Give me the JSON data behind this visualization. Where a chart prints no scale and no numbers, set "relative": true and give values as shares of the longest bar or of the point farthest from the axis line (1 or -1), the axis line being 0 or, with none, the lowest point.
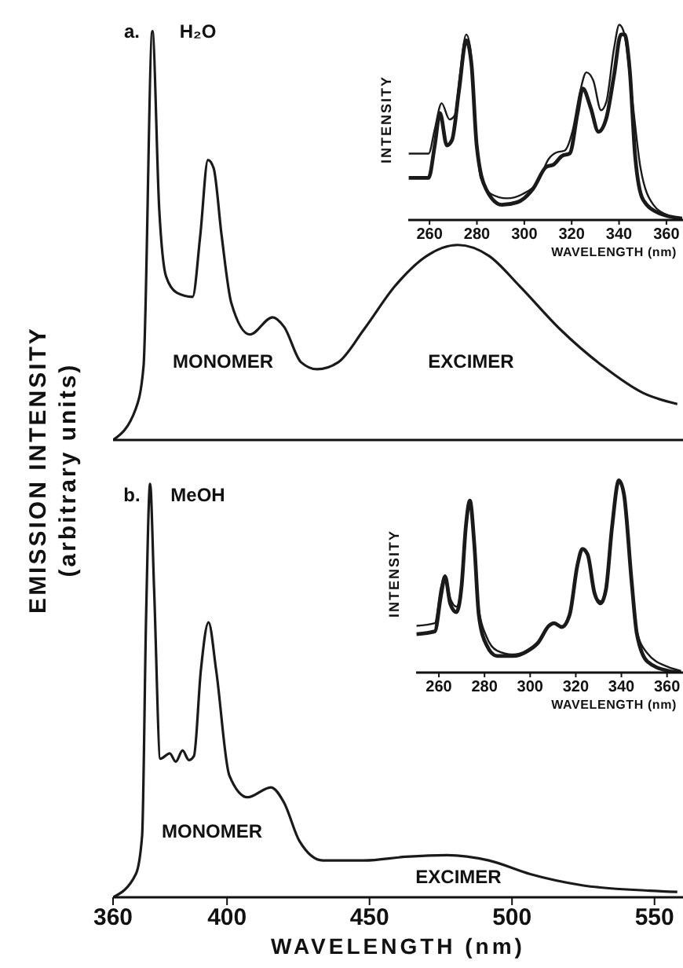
{
  "chart_data": [
    {
      "type": "line",
      "relative": true,
      "ylabel": "EMISSION INTENSITY (arbitrary units)",
      "xlim": [
        360,
        560
      ],
      "xticks": [
        360,
        400,
        450,
        500,
        550
      ],
      "tick_labels": false,
      "marker": "none",
      "x": [
        360,
        368,
        370.7,
        373.8,
        376.2,
        378.6,
        382.4,
        387.9,
        390.6,
        393.3,
        395.3,
        398.1,
        401.5,
        408,
        416,
        420,
        426,
        431.6,
        439,
        448,
        459,
        470,
        481,
        492,
        502.6,
        517,
        532,
        546,
        558
      ],
      "series": [
        {
          "color": "#1a1a1a",
          "values": [
            0,
            0.077,
            0.18,
            1.0,
            0.565,
            0.4,
            0.36,
            0.35,
            0.5,
            0.685,
            0.665,
            0.5,
            0.335,
            0.258,
            0.3,
            0.277,
            0.19,
            0.173,
            0.19,
            0.27,
            0.377,
            0.45,
            0.477,
            0.45,
            0.377,
            0.27,
            0.18,
            0.115,
            0.088
          ]
        }
      ],
      "annotations": [
        "a.",
        "H₂O",
        "MONOMER",
        "EXCIMER"
      ]
    },
    {
      "type": "line",
      "relative": true,
      "ylabel": "INTENSITY",
      "xlabel": "WAVELENGTH (nm)",
      "xlim": [
        251,
        367
      ],
      "xticks": [
        260,
        280,
        300,
        320,
        340,
        360
      ],
      "tick_labels": "x",
      "marker": "none",
      "series": [
        {
          "color": "#1a1a1a",
          "x": [
            251.2,
            259.6,
            262.2,
            265.1,
            268.4,
            270.6,
            272.8,
            275.5,
            277.2,
            279.4,
            281.6,
            286,
            292.7,
            299.3,
            306,
            310.3,
            313.6,
            317,
            320.3,
            323.6,
            326.2,
            329.1,
            332.4,
            334.6,
            337.9,
            340.1,
            342.3,
            345.7,
            349,
            354.5,
            361.1,
            366.6
          ],
          "values": [
            0.34,
            0.34,
            0.465,
            0.598,
            0.515,
            0.535,
            0.742,
            0.95,
            0.88,
            0.465,
            0.216,
            0.133,
            0.111,
            0.133,
            0.202,
            0.313,
            0.346,
            0.355,
            0.452,
            0.66,
            0.756,
            0.715,
            0.562,
            0.604,
            0.88,
            1,
            0.95,
            0.604,
            0.271,
            0.078,
            0.022,
            0.008
          ]
        },
        {
          "color": "#1a1a1a",
          "x": [
            251.2,
            259.6,
            262.2,
            264.4,
            267.3,
            269.5,
            272.4,
            275.5,
            277.7,
            279.9,
            283.8,
            290.5,
            297.1,
            303.7,
            309.2,
            312.5,
            315.8,
            319.2,
            322.5,
            324.7,
            328,
            331.3,
            334.6,
            337.9,
            340.8,
            342.3,
            344.5,
            346.8,
            350.1,
            356.7,
            366.6
          ],
          "values": [
            0.216,
            0.216,
            0.382,
            0.548,
            0.382,
            0.41,
            0.66,
            0.92,
            0.798,
            0.382,
            0.16,
            0.078,
            0.091,
            0.16,
            0.271,
            0.285,
            0.327,
            0.341,
            0.548,
            0.673,
            0.576,
            0.452,
            0.52,
            0.742,
            0.95,
            0.95,
            0.77,
            0.327,
            0.105,
            0.036,
            0.008
          ]
        }
      ]
    },
    {
      "type": "line",
      "relative": true,
      "xlabel": "WAVELENGTH (nm)",
      "xlim": [
        360,
        560
      ],
      "xticks": [
        360,
        400,
        450,
        500,
        550
      ],
      "tick_labels": "x",
      "marker": "none",
      "x": [
        360,
        368,
        370.2,
        371.6,
        373,
        374.4,
        376.6,
        379.9,
        382,
        384.4,
        386.6,
        388.4,
        390.8,
        393.5,
        396.2,
        400.8,
        407.2,
        415.4,
        420,
        425.4,
        433.6,
        448.1,
        462.7,
        477.3,
        491.9,
        506.4,
        524.6,
        548.4,
        558
      ],
      "series": [
        {
          "color": "#1a1a1a",
          "values": [
            0,
            0.056,
            0.149,
            0.68,
            1.0,
            0.747,
            0.335,
            0.348,
            0.328,
            0.355,
            0.332,
            0.342,
            0.548,
            0.665,
            0.548,
            0.295,
            0.242,
            0.266,
            0.229,
            0.136,
            0.089,
            0.089,
            0.098,
            0.102,
            0.089,
            0.056,
            0.029,
            0.016,
            0.013
          ]
        }
      ],
      "annotations": [
        "b.",
        "MeOH",
        "MONOMER",
        "EXCIMER"
      ]
    },
    {
      "type": "line",
      "relative": true,
      "ylabel": "INTENSITY",
      "xlabel": "WAVELENGTH (nm)",
      "xlim": [
        250,
        367
      ],
      "xticks": [
        260,
        280,
        300,
        320,
        340,
        360
      ],
      "tick_labels": "x",
      "marker": "none",
      "x": [
        250.2,
        258.2,
        260.9,
        262.7,
        265,
        267.7,
        270,
        271.8,
        273.6,
        275.5,
        277.5,
        280.9,
        285.5,
        292.3,
        299.1,
        303.6,
        308.2,
        310.5,
        313.9,
        317.3,
        320.7,
        322.9,
        325.2,
        328.2,
        330.9,
        333.2,
        335.9,
        338.9,
        341.1,
        344.5,
        346.8,
        351.4,
        360.5,
        366.1
      ],
      "series": [
        {
          "color": "#1a1a1a",
          "values": [
            0.243,
            0.257,
            0.443,
            0.506,
            0.386,
            0.343,
            0.471,
            0.757,
            0.894,
            0.671,
            0.329,
            0.186,
            0.114,
            0.094,
            0.114,
            0.157,
            0.243,
            0.257,
            0.237,
            0.3,
            0.557,
            0.643,
            0.614,
            0.414,
            0.371,
            0.443,
            0.757,
            1,
            0.929,
            0.471,
            0.214,
            0.1,
            0.029,
            0.009
          ]
        },
        {
          "color": "#1a1a1a",
          "values": [
            0.2,
            0.214,
            0.4,
            0.5,
            0.357,
            0.314,
            0.457,
            0.757,
            0.894,
            0.671,
            0.3,
            0.143,
            0.086,
            0.086,
            0.114,
            0.157,
            0.243,
            0.257,
            0.237,
            0.3,
            0.557,
            0.643,
            0.614,
            0.414,
            0.36,
            0.43,
            0.757,
            1,
            0.929,
            0.471,
            0.2,
            0.057,
            0.009,
            0
          ]
        }
      ]
    }
  ]
}
